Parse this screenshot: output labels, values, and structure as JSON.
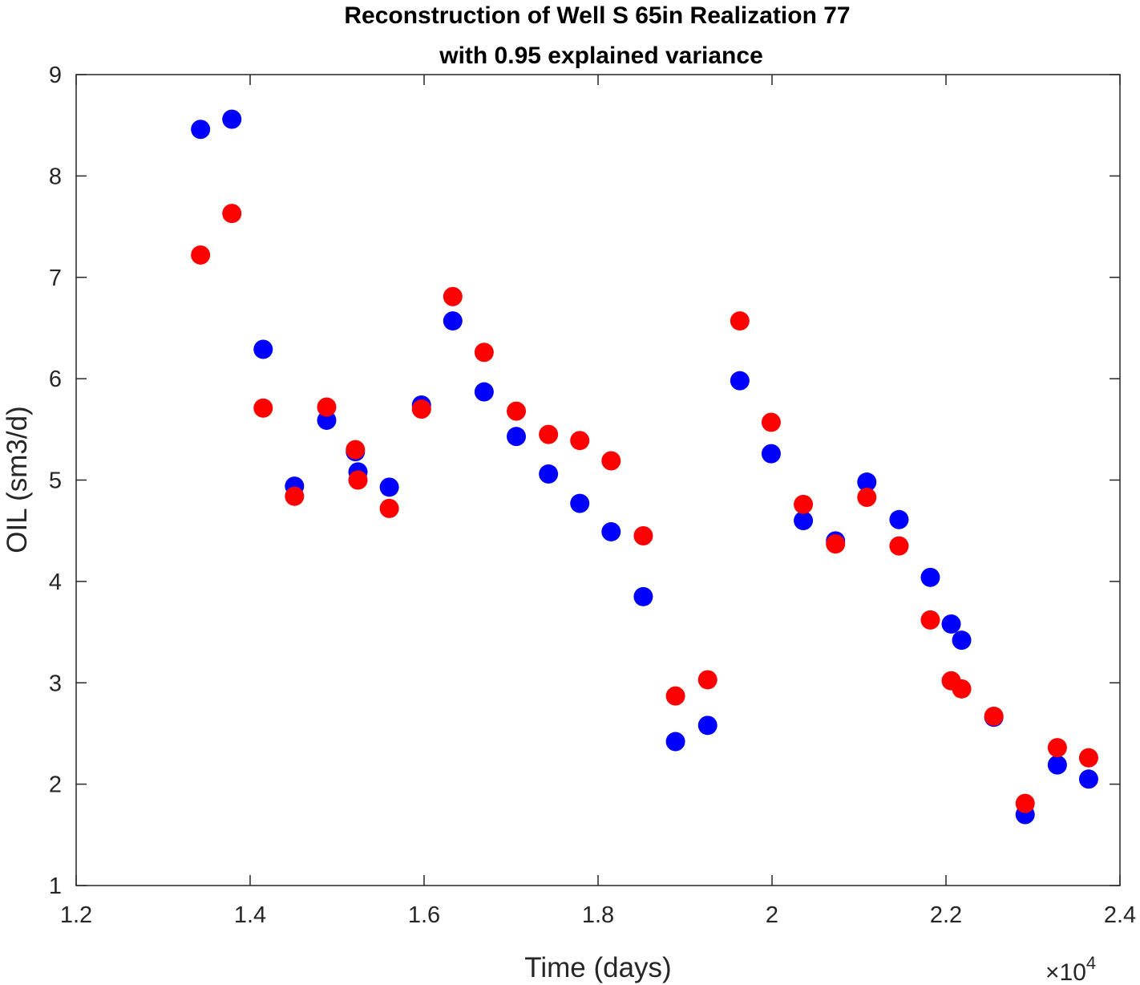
{
  "chart_data": {
    "type": "scatter",
    "title": [
      "Reconstruction of Well S 65in Realization 77",
      "with 0.95 explained variance"
    ],
    "xlabel": "Time (days)",
    "ylabel": "OIL (sm3/d)",
    "xlim": [
      12000,
      24000
    ],
    "ylim": [
      1,
      9
    ],
    "x_ticks": [
      12000,
      14000,
      16000,
      18000,
      20000,
      22000,
      24000
    ],
    "x_tick_labels": [
      "1.2",
      "1.4",
      "1.6",
      "1.8",
      "2",
      "2.2",
      "2.4"
    ],
    "x_exponent_label": "×10",
    "x_exponent_power": "4",
    "y_ticks": [
      1,
      2,
      3,
      4,
      5,
      6,
      7,
      8,
      9
    ],
    "y_tick_labels": [
      "1",
      "2",
      "3",
      "4",
      "5",
      "6",
      "7",
      "8",
      "9"
    ],
    "grid": false,
    "x": [
      13430,
      13790,
      14150,
      14510,
      14880,
      15210,
      15240,
      15600,
      15970,
      16330,
      16690,
      17060,
      17430,
      17790,
      18150,
      18520,
      18890,
      19260,
      19630,
      19990,
      20360,
      20730,
      21090,
      21460,
      21820,
      22060,
      22180,
      22550,
      22910,
      23280,
      23640
    ],
    "series": [
      {
        "color": "#0000ff",
        "values": [
          8.46,
          8.56,
          6.29,
          4.94,
          5.59,
          5.28,
          5.08,
          4.93,
          5.74,
          6.57,
          5.87,
          5.43,
          5.06,
          4.77,
          4.49,
          3.85,
          2.42,
          2.58,
          5.98,
          5.26,
          4.6,
          4.4,
          4.98,
          4.61,
          4.04,
          3.58,
          3.42,
          2.66,
          1.7,
          2.19,
          2.05
        ]
      },
      {
        "color": "#ff0000",
        "values": [
          7.22,
          7.63,
          5.71,
          4.84,
          5.72,
          5.3,
          5.0,
          4.72,
          5.7,
          6.81,
          6.26,
          5.68,
          5.45,
          5.39,
          5.19,
          4.45,
          2.87,
          3.03,
          6.57,
          5.57,
          4.76,
          4.37,
          4.83,
          4.35,
          3.62,
          3.02,
          2.94,
          2.67,
          1.81,
          2.36,
          2.26
        ]
      }
    ]
  }
}
